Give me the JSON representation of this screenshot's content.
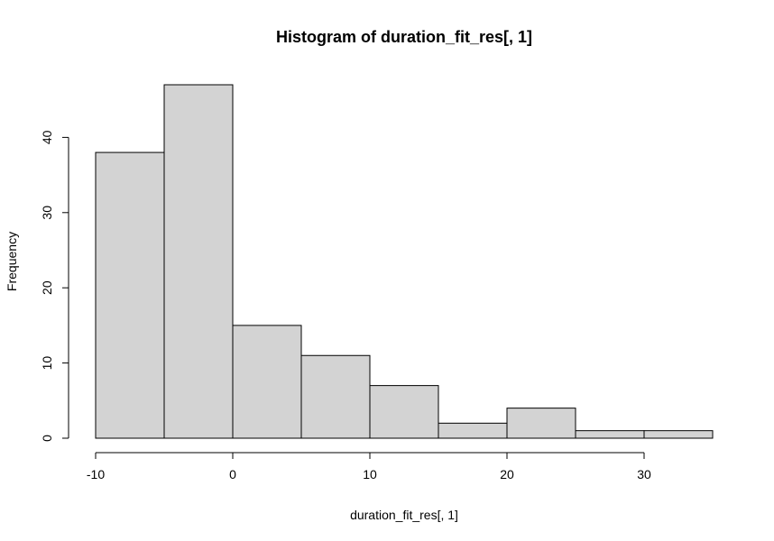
{
  "chart_data": {
    "type": "bar",
    "title": "Histogram of duration_fit_res[, 1]",
    "xlabel": "duration_fit_res[, 1]",
    "ylabel": "Frequency",
    "bins": [
      {
        "x0": -10,
        "x1": -5,
        "count": 38
      },
      {
        "x0": -5,
        "x1": 0,
        "count": 47
      },
      {
        "x0": 0,
        "x1": 5,
        "count": 15
      },
      {
        "x0": 5,
        "x1": 10,
        "count": 11
      },
      {
        "x0": 10,
        "x1": 15,
        "count": 7
      },
      {
        "x0": 15,
        "x1": 20,
        "count": 2
      },
      {
        "x0": 20,
        "x1": 25,
        "count": 4
      },
      {
        "x0": 25,
        "x1": 30,
        "count": 1
      },
      {
        "x0": 30,
        "x1": 35,
        "count": 1
      }
    ],
    "x_ticks": [
      -10,
      0,
      10,
      20,
      30
    ],
    "y_ticks": [
      0,
      10,
      20,
      30,
      40
    ],
    "xlim": [
      -10,
      35
    ],
    "ylim": [
      0,
      47
    ],
    "grid": false,
    "bar_fill": "#d3d3d3",
    "bar_stroke": "#000000"
  }
}
